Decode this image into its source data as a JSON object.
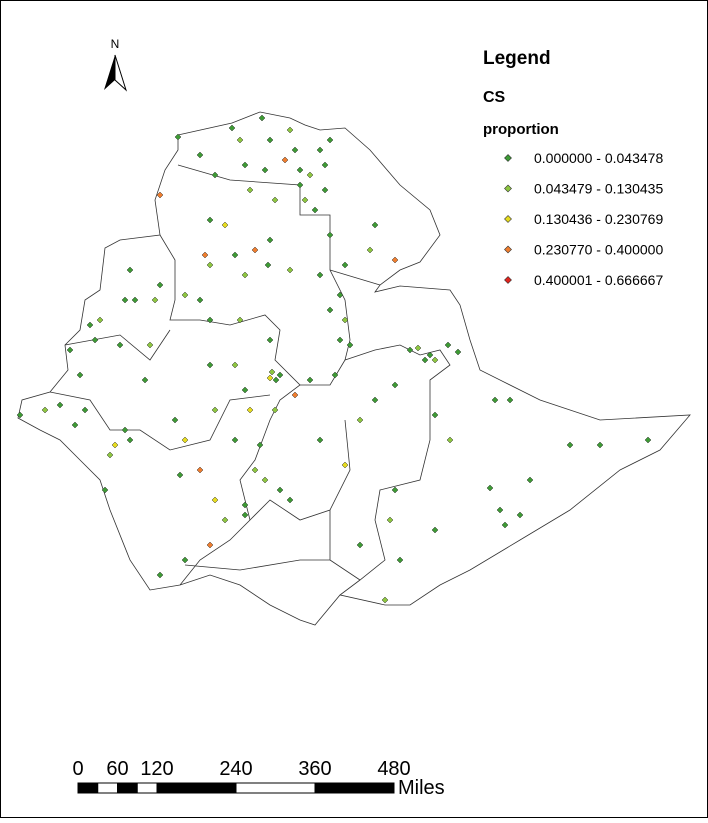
{
  "north_arrow": "N",
  "legend": {
    "title": "Legend",
    "layer": "CS",
    "field": "proportion",
    "classes": [
      {
        "label": "0.000000 - 0.043478",
        "color": "#3d9a34"
      },
      {
        "label": "0.043479 - 0.130435",
        "color": "#8dc63f"
      },
      {
        "label": "0.130436 - 0.230769",
        "color": "#e6dc1e"
      },
      {
        "label": "0.230770 - 0.400000",
        "color": "#ef7d2d"
      },
      {
        "label": "0.400001 - 0.666667",
        "color": "#e0241d"
      }
    ]
  },
  "scale_bar": {
    "ticks": [
      0,
      60,
      120,
      240,
      360,
      480
    ],
    "unit": "Miles"
  }
}
